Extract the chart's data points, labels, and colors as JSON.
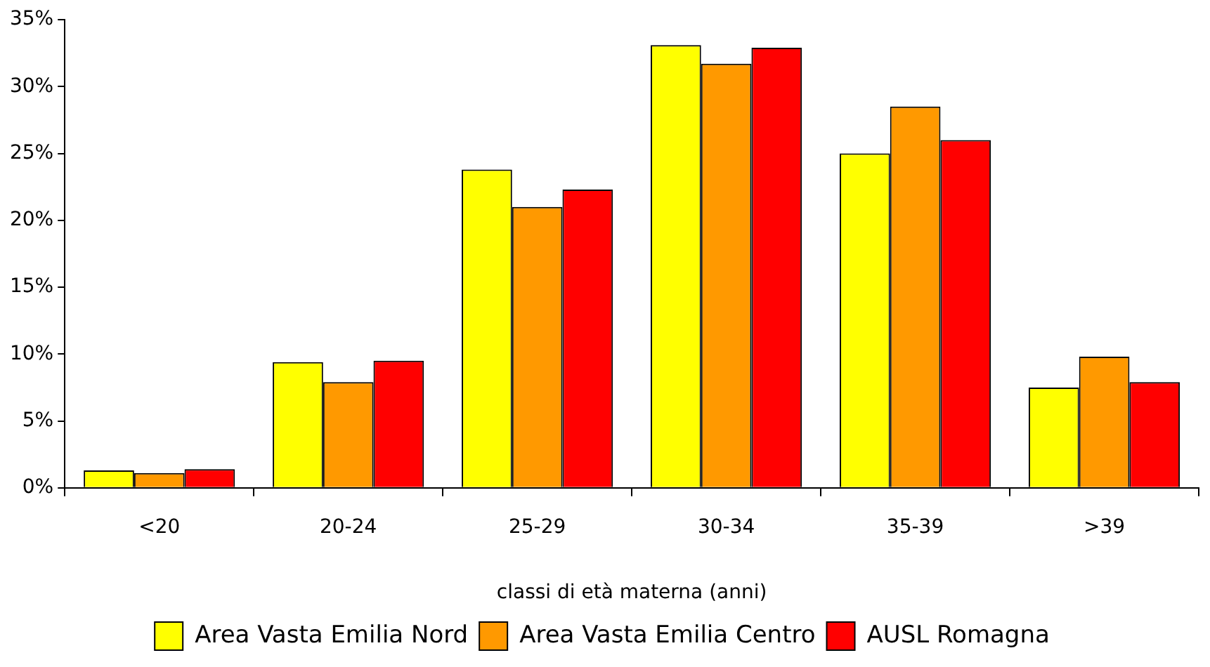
{
  "chart_data": {
    "type": "bar",
    "xlabel": "classi di età materna (anni)",
    "categories": [
      "<20",
      "20-24",
      "25-29",
      "30-34",
      "35-39",
      ">39"
    ],
    "series": [
      {
        "name": "Area Vasta Emilia Nord",
        "color": "#ffff00",
        "values": [
          1.3,
          9.4,
          23.8,
          33.1,
          25.0,
          7.5
        ]
      },
      {
        "name": "Area Vasta Emilia Centro",
        "color": "#ff9900",
        "values": [
          1.1,
          7.9,
          21.0,
          31.7,
          28.5,
          9.8
        ]
      },
      {
        "name": "AUSL Romagna",
        "color": "#ff0000",
        "values": [
          1.4,
          9.5,
          22.3,
          32.9,
          26.0,
          7.9
        ]
      }
    ],
    "ylim": [
      0,
      35
    ],
    "yticks": [
      {
        "value": 0,
        "label": "0%"
      },
      {
        "value": 5,
        "label": "5%"
      },
      {
        "value": 10,
        "label": "10%"
      },
      {
        "value": 15,
        "label": "15%"
      },
      {
        "value": 20,
        "label": "20%"
      },
      {
        "value": 25,
        "label": "25%"
      },
      {
        "value": 30,
        "label": "30%"
      },
      {
        "value": 35,
        "label": "35%"
      }
    ],
    "grid": false,
    "legend": "bottom"
  }
}
